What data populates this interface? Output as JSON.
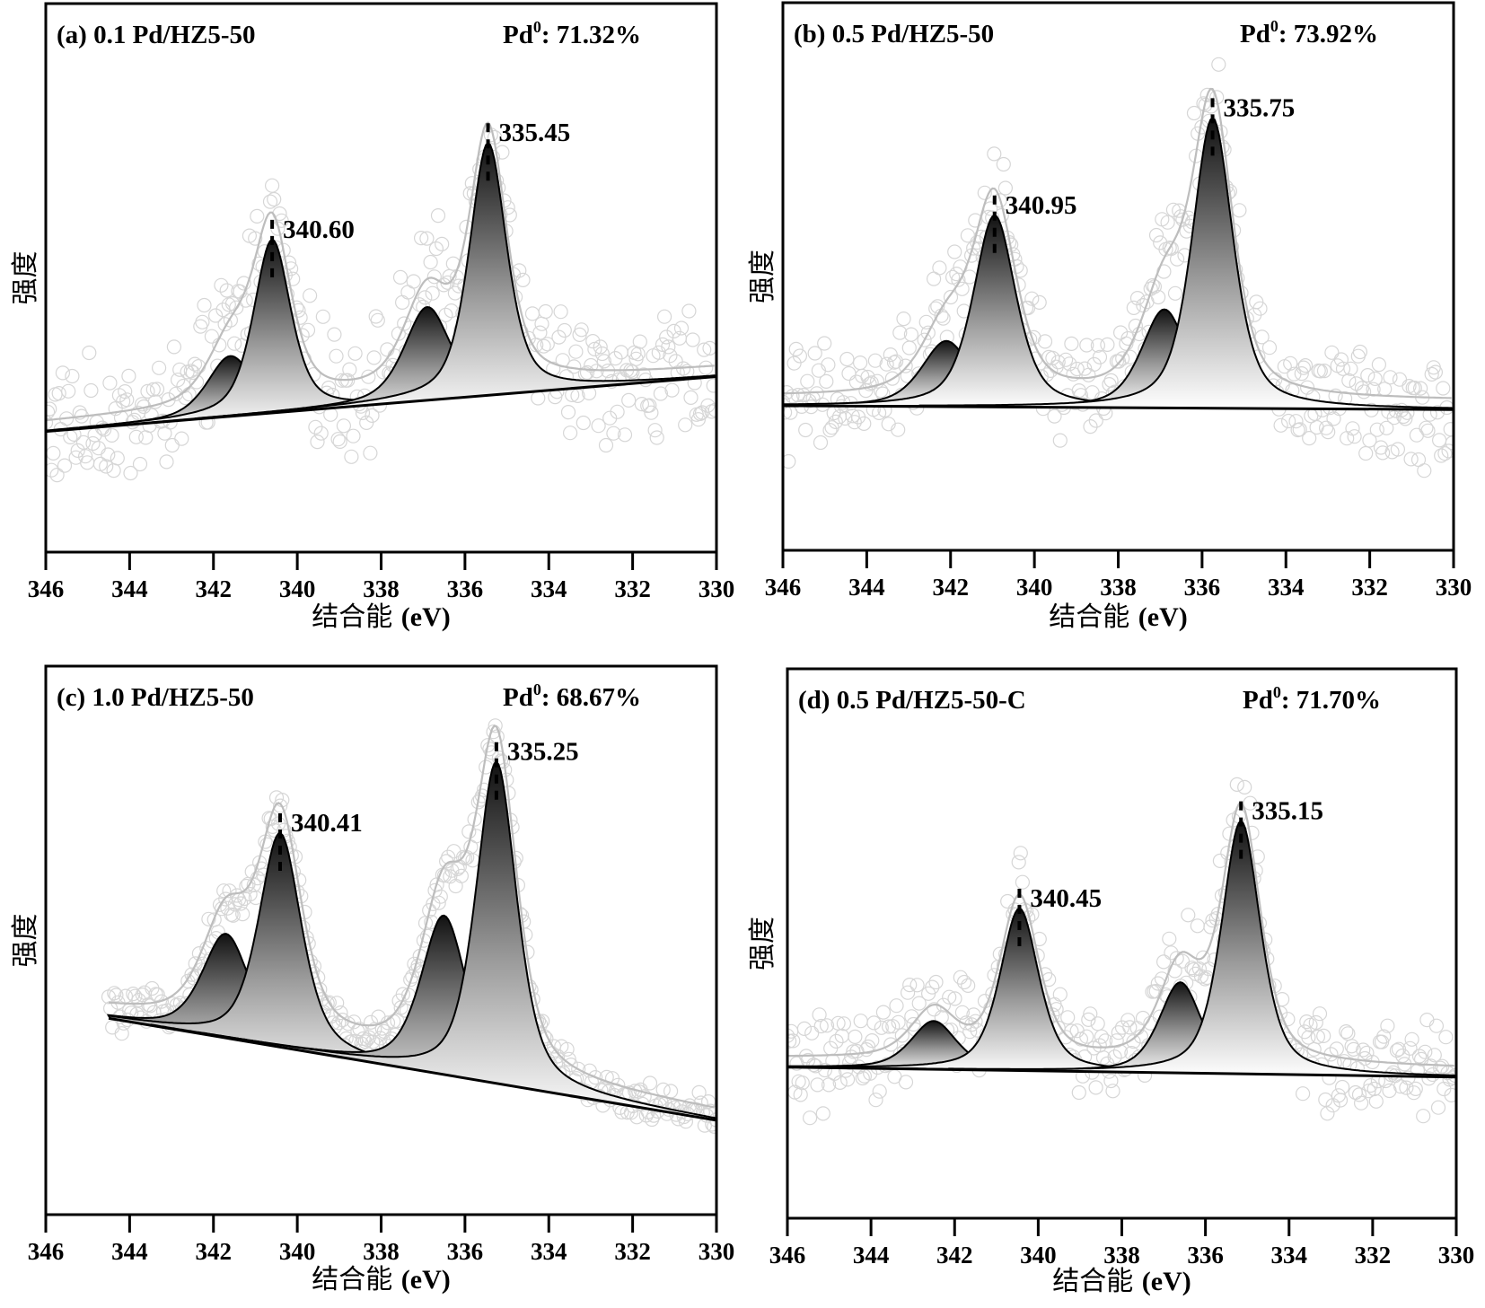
{
  "figure": {
    "ylabel": "强度",
    "xlabel_cn": "结合能",
    "xlabel_unit": "(eV)",
    "pd0_prefix": "Pd",
    "pd0_sup": "0",
    "colors": {
      "raw_points": "#d6d6d6",
      "envelope": "#bdbdbd",
      "component_dark": "#111111",
      "component_light": "#ffffff",
      "lines": "#000000"
    }
  },
  "chart_data": [
    {
      "type": "line",
      "panel": "a",
      "title": "(a)  0.1 Pd/HZ5-50",
      "pd0_value": ": 71.32%",
      "xlabel": "结合能 (eV)",
      "ylabel": "强度",
      "xlim": [
        346,
        330
      ],
      "ylim": [
        0,
        100
      ],
      "x_ticks": [
        "346",
        "344",
        "342",
        "340",
        "338",
        "336",
        "334",
        "332",
        "330"
      ],
      "grid": false,
      "baseline": {
        "x_start": 346,
        "y_start": 22,
        "x_end": 330,
        "y_end": 32
      },
      "components": [
        {
          "center": 341.6,
          "height": 11,
          "fwhm": 1.3
        },
        {
          "center": 340.6,
          "height": 31.6,
          "fwhm": 1.05
        },
        {
          "center": 336.9,
          "height": 17,
          "fwhm": 1.3
        },
        {
          "center": 335.45,
          "height": 46,
          "fwhm": 1.05
        }
      ],
      "labeled_peaks": [
        {
          "x": 340.6,
          "label": "340.60"
        },
        {
          "x": 335.45,
          "label": "335.45"
        }
      ],
      "noise": 9,
      "data_range": [
        346,
        330
      ]
    },
    {
      "type": "line",
      "panel": "b",
      "title": "(b)  0.5 Pd/HZ5-50",
      "pd0_value": ": 73.92%",
      "xlabel": "结合能 (eV)",
      "ylabel": "强度",
      "xlim": [
        346,
        330
      ],
      "ylim": [
        0,
        100
      ],
      "x_ticks": [
        "346",
        "344",
        "342",
        "340",
        "338",
        "336",
        "334",
        "332",
        "330"
      ],
      "grid": false,
      "baseline": {
        "x_start": 346,
        "y_start": 26.4,
        "x_end": 330,
        "y_end": 25.7
      },
      "components": [
        {
          "center": 342.1,
          "height": 12,
          "fwhm": 1.4
        },
        {
          "center": 340.95,
          "height": 35,
          "fwhm": 1.2
        },
        {
          "center": 336.9,
          "height": 18,
          "fwhm": 1.3
        },
        {
          "center": 335.75,
          "height": 53,
          "fwhm": 1.15
        }
      ],
      "labeled_peaks": [
        {
          "x": 340.95,
          "label": "340.95"
        },
        {
          "x": 335.75,
          "label": "335.75"
        }
      ],
      "noise": 8,
      "data_range": [
        346,
        330
      ]
    },
    {
      "type": "line",
      "panel": "c",
      "title": "(c)  1.0 Pd/HZ5-50",
      "pd0_value": ": 68.67%",
      "xlabel": "结合能 (eV)",
      "ylabel": "强度",
      "xlim": [
        346,
        330
      ],
      "ylim": [
        0,
        100
      ],
      "x_ticks": [
        "346",
        "344",
        "342",
        "340",
        "338",
        "336",
        "334",
        "332",
        "330"
      ],
      "grid": false,
      "baseline": {
        "x_start": 344.5,
        "y_start": 35.8,
        "x_end": 330,
        "y_end": 17.2
      },
      "components": [
        {
          "center": 341.7,
          "height": 19,
          "fwhm": 1.35
        },
        {
          "center": 340.41,
          "height": 39,
          "fwhm": 1.2
        },
        {
          "center": 336.5,
          "height": 29,
          "fwhm": 1.3
        },
        {
          "center": 335.25,
          "height": 58.6,
          "fwhm": 1.15
        }
      ],
      "labeled_peaks": [
        {
          "x": 340.41,
          "label": "340.41"
        },
        {
          "x": 335.25,
          "label": "335.25"
        }
      ],
      "noise": 3,
      "data_range": [
        344.5,
        330
      ]
    },
    {
      "type": "line",
      "panel": "d",
      "title": "(d)  0.5 Pd/HZ5-50-C",
      "pd0_value": ": 71.70%",
      "xlabel": "结合能 (eV)",
      "ylabel": "强度",
      "xlim": [
        346,
        330
      ],
      "ylim": [
        0,
        100
      ],
      "x_ticks": [
        "346",
        "344",
        "342",
        "340",
        "338",
        "336",
        "334",
        "332",
        "330"
      ],
      "grid": false,
      "baseline": {
        "x_start": 346,
        "y_start": 27.5,
        "x_end": 330,
        "y_end": 25.7
      },
      "components": [
        {
          "center": 342.5,
          "height": 8.8,
          "fwhm": 1.3
        },
        {
          "center": 340.45,
          "height": 29.5,
          "fwhm": 1.1
        },
        {
          "center": 336.6,
          "height": 16.5,
          "fwhm": 1.2
        },
        {
          "center": 335.15,
          "height": 46,
          "fwhm": 1.1
        }
      ],
      "labeled_peaks": [
        {
          "x": 340.45,
          "label": "340.45"
        },
        {
          "x": 335.15,
          "label": "335.15"
        }
      ],
      "noise": 7,
      "data_range": [
        346,
        330
      ]
    }
  ]
}
